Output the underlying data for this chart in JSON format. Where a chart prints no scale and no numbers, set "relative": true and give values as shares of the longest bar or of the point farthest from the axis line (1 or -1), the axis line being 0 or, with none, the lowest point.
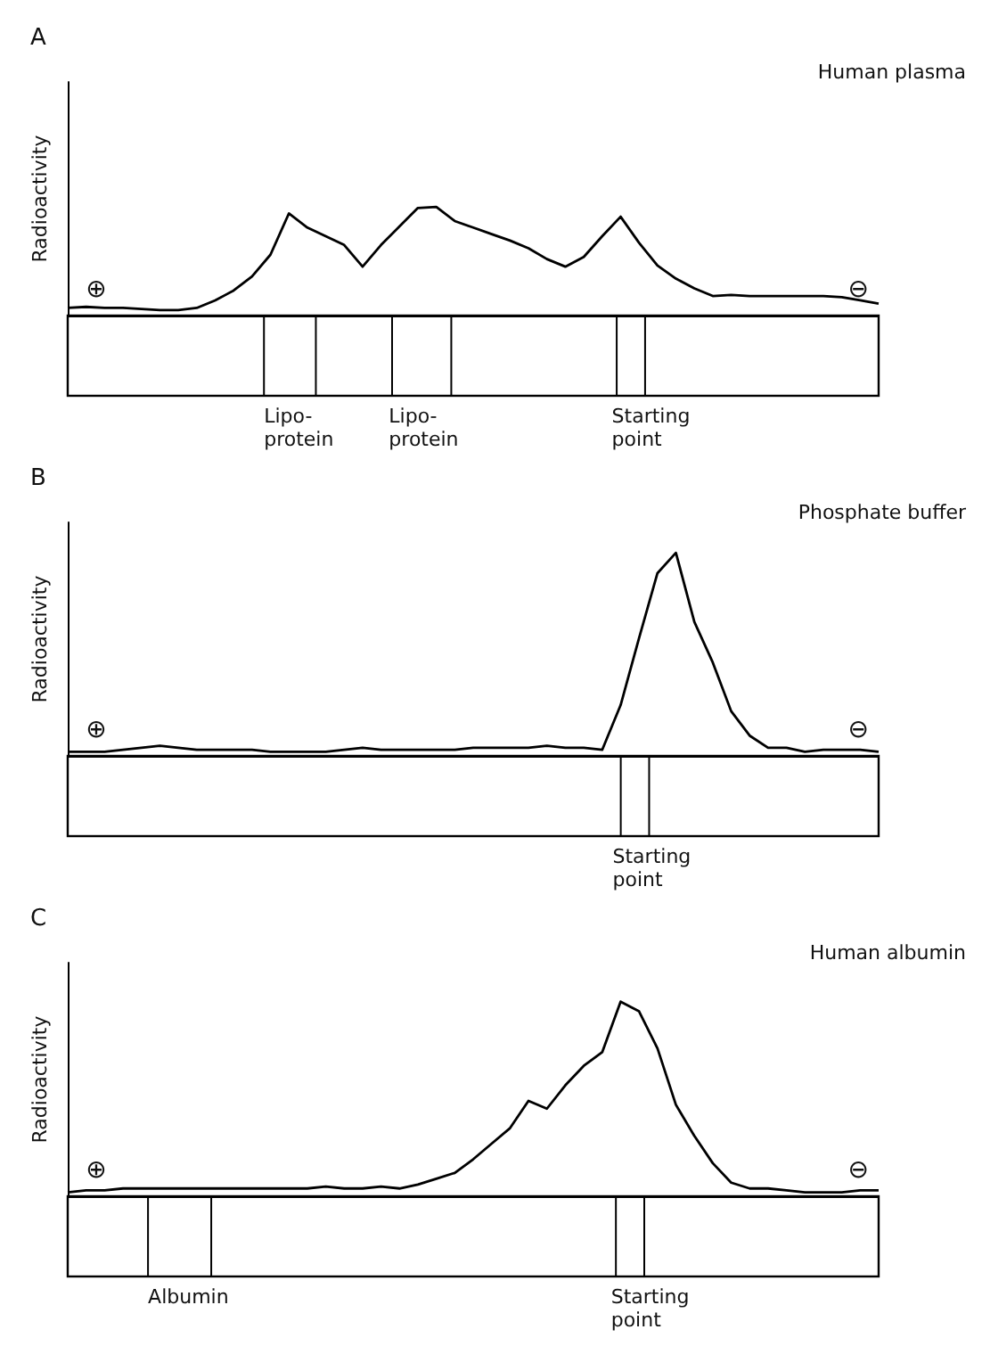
{
  "chart_data": [
    {
      "type": "line",
      "title": "A",
      "subtitle": "Human plasma",
      "ylabel": "Radioactivity",
      "relative": true,
      "color": "#000000",
      "categories": [
        null,
        null,
        null,
        null,
        null,
        null,
        null,
        null,
        null,
        null,
        null,
        null,
        null,
        null,
        null,
        null,
        null,
        null,
        null,
        null,
        null,
        null,
        null,
        null,
        null,
        null,
        null,
        null,
        null,
        null,
        null,
        null,
        null,
        null,
        null,
        null,
        null,
        null,
        null,
        null,
        null,
        null,
        null,
        null,
        null
      ],
      "values": [
        0.07,
        0.08,
        0.07,
        0.07,
        0.06,
        0.05,
        0.05,
        0.07,
        0.14,
        0.23,
        0.36,
        0.56,
        0.94,
        0.81,
        0.73,
        0.65,
        0.45,
        0.65,
        0.82,
        0.99,
        1.0,
        0.87,
        0.81,
        0.75,
        0.69,
        0.62,
        0.52,
        0.45,
        0.54,
        0.73,
        0.91,
        0.67,
        0.46,
        0.34,
        0.25,
        0.18,
        0.19,
        0.18,
        0.18,
        0.18,
        0.18,
        0.18,
        0.17,
        0.14,
        0.11
      ],
      "annotations": [
        "⊕",
        "⊖",
        "Lipo-protein",
        "Lipo-protein",
        "Starting point"
      ]
    },
    {
      "type": "line",
      "title": "B",
      "subtitle": "Phosphate buffer",
      "ylabel": "Radioactivity",
      "relative": true,
      "color": "#000000",
      "categories": [
        null,
        null,
        null,
        null,
        null,
        null,
        null,
        null,
        null,
        null,
        null,
        null,
        null,
        null,
        null,
        null,
        null,
        null,
        null,
        null,
        null,
        null,
        null,
        null,
        null,
        null,
        null,
        null,
        null,
        null,
        null,
        null,
        null,
        null,
        null,
        null,
        null,
        null,
        null,
        null,
        null,
        null,
        null,
        null,
        null
      ],
      "values": [
        0.02,
        0.02,
        0.02,
        0.03,
        0.04,
        0.05,
        0.04,
        0.03,
        0.03,
        0.03,
        0.03,
        0.02,
        0.02,
        0.02,
        0.02,
        0.03,
        0.04,
        0.03,
        0.03,
        0.03,
        0.03,
        0.03,
        0.04,
        0.04,
        0.04,
        0.04,
        0.05,
        0.04,
        0.04,
        0.03,
        0.25,
        0.58,
        0.9,
        1.0,
        0.66,
        0.46,
        0.22,
        0.1,
        0.04,
        0.04,
        0.02,
        0.03,
        0.03,
        0.03,
        0.02
      ],
      "annotations": [
        "⊕",
        "⊖",
        "Starting point"
      ]
    },
    {
      "type": "line",
      "title": "C",
      "subtitle": "Human albumin",
      "ylabel": "Radioactivity",
      "relative": true,
      "color": "#000000",
      "categories": [
        null,
        null,
        null,
        null,
        null,
        null,
        null,
        null,
        null,
        null,
        null,
        null,
        null,
        null,
        null,
        null,
        null,
        null,
        null,
        null,
        null,
        null,
        null,
        null,
        null,
        null,
        null,
        null,
        null,
        null,
        null,
        null,
        null,
        null,
        null,
        null,
        null,
        null,
        null,
        null,
        null,
        null,
        null,
        null,
        null
      ],
      "values": [
        0.02,
        0.03,
        0.03,
        0.04,
        0.04,
        0.04,
        0.04,
        0.04,
        0.04,
        0.04,
        0.04,
        0.04,
        0.04,
        0.04,
        0.05,
        0.04,
        0.04,
        0.05,
        0.04,
        0.06,
        0.09,
        0.12,
        0.19,
        0.27,
        0.35,
        0.49,
        0.45,
        0.57,
        0.67,
        0.74,
        1.0,
        0.95,
        0.76,
        0.47,
        0.31,
        0.17,
        0.07,
        0.04,
        0.04,
        0.03,
        0.02,
        0.02,
        0.02,
        0.03,
        0.03
      ],
      "annotations": [
        "⊕",
        "⊖",
        "Albumin",
        "Starting point"
      ]
    }
  ]
}
